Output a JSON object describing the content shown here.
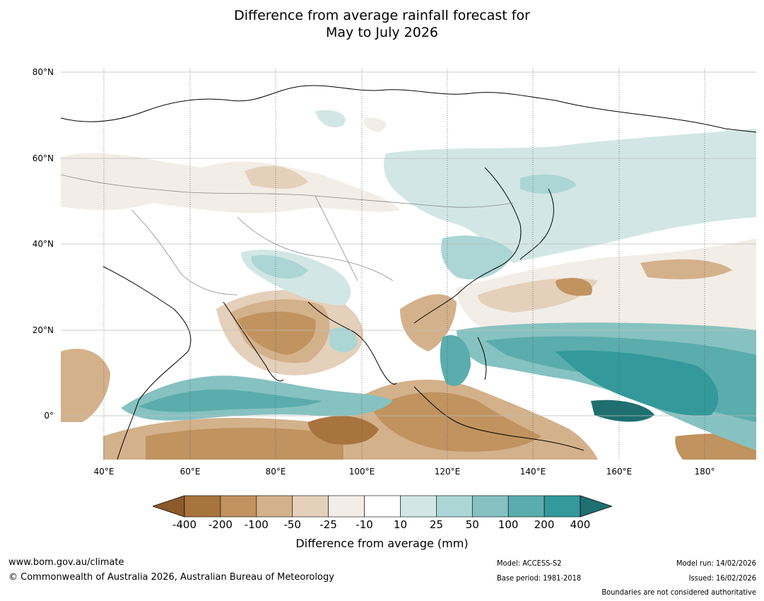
{
  "title": {
    "line1": "Difference from average rainfall forecast for",
    "line2": "May to July 2026"
  },
  "map": {
    "lat_labels": [
      "80°N",
      "60°N",
      "40°N",
      "20°N",
      "0°"
    ],
    "lon_labels": [
      "40°E",
      "60°E",
      "80°E",
      "100°E",
      "120°E",
      "140°E",
      "160°E",
      "180°"
    ]
  },
  "colorbar": {
    "ticks": [
      "-400",
      "-200",
      "-100",
      "-50",
      "-25",
      "-10",
      "10",
      "25",
      "50",
      "100",
      "200",
      "400"
    ],
    "colors": [
      "#8c5a2b",
      "#a8743e",
      "#c0935f",
      "#d3b18b",
      "#e4d0bb",
      "#f2ede6",
      "#ffffff",
      "#d2e7e5",
      "#abd6d5",
      "#86c2c1",
      "#5aadac",
      "#33999a",
      "#1f6f70"
    ],
    "label": "Difference from average (mm)"
  },
  "footer": {
    "url": "www.bom.gov.au/climate",
    "copyright": "© Commonwealth of Australia 2026, Australian Bureau of Meteorology",
    "model": "Model: ACCESS-S2",
    "base_period": "Base period: 1981-2018",
    "model_run": "Model run: 14/02/2026",
    "issued": "Issued: 16/02/2026",
    "disclaimer": "Boundaries are not considered authoritative"
  }
}
